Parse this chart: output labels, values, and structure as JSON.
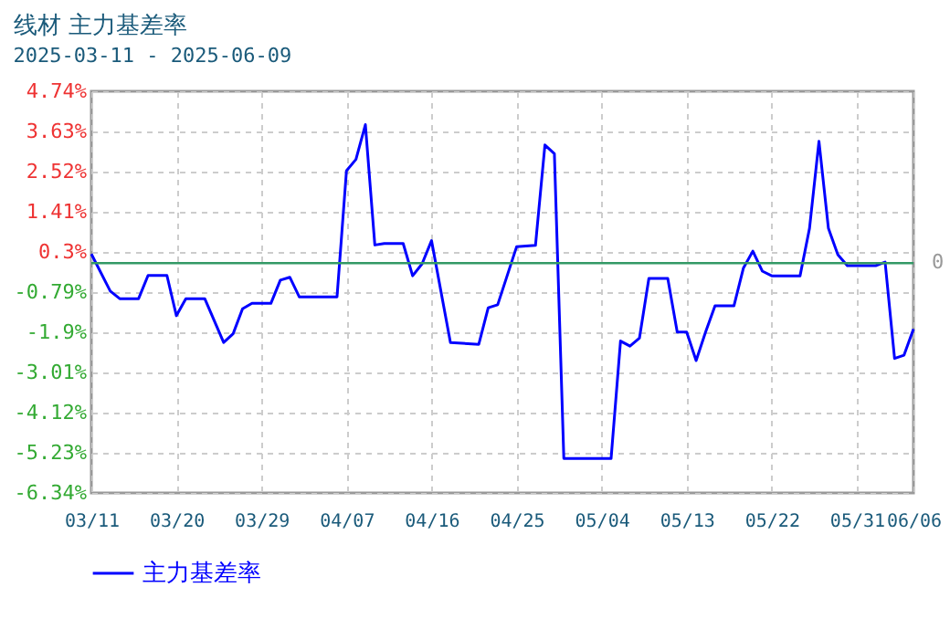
{
  "chart_data": {
    "type": "line",
    "title": "线材  主力基差率",
    "subtitle": "2025-03-11 - 2025-06-09",
    "x": [
      "2025-03-11",
      "2025-03-13",
      "2025-03-14",
      "2025-03-16",
      "2025-03-17",
      "2025-03-18",
      "2025-03-19",
      "2025-03-20",
      "2025-03-21",
      "2025-03-23",
      "2025-03-25",
      "2025-03-26",
      "2025-03-27",
      "2025-03-28",
      "2025-03-30",
      "2025-03-31",
      "2025-04-01",
      "2025-04-02",
      "2025-04-06",
      "2025-04-07",
      "2025-04-08",
      "2025-04-09",
      "2025-04-10",
      "2025-04-11",
      "2025-04-13",
      "2025-04-14",
      "2025-04-15",
      "2025-04-16",
      "2025-04-18",
      "2025-04-21",
      "2025-04-22",
      "2025-04-23",
      "2025-04-25",
      "2025-04-27",
      "2025-04-28",
      "2025-04-29",
      "2025-04-30",
      "2025-05-05",
      "2025-05-06",
      "2025-05-07",
      "2025-05-08",
      "2025-05-09",
      "2025-05-11",
      "2025-05-12",
      "2025-05-13",
      "2025-05-14",
      "2025-05-15",
      "2025-05-16",
      "2025-05-18",
      "2025-05-19",
      "2025-05-20",
      "2025-05-21",
      "2025-05-22",
      "2025-05-25",
      "2025-05-26",
      "2025-05-27",
      "2025-05-28",
      "2025-05-29",
      "2025-05-30",
      "2025-06-02",
      "2025-06-03",
      "2025-06-04",
      "2025-06-05",
      "2025-06-06"
    ],
    "series": [
      {
        "name": "主力基差率",
        "color": "#0000ff",
        "values": [
          0.25,
          -0.77,
          -0.98,
          -0.98,
          -0.34,
          -0.34,
          -0.34,
          -1.45,
          -0.98,
          -0.98,
          -2.19,
          -1.95,
          -1.26,
          -1.11,
          -1.11,
          -0.47,
          -0.39,
          -0.93,
          -0.93,
          2.55,
          2.86,
          3.82,
          0.5,
          0.54,
          0.54,
          -0.35,
          -0.02,
          0.62,
          -2.19,
          -2.24,
          -1.23,
          -1.15,
          0.45,
          0.49,
          3.26,
          3.02,
          -5.39,
          -5.39,
          -2.15,
          -2.29,
          -2.07,
          -0.42,
          -0.42,
          -1.9,
          -1.9,
          -2.69,
          -1.9,
          -1.18,
          -1.18,
          -0.14,
          0.33,
          -0.22,
          -0.35,
          -0.35,
          0.96,
          3.36,
          0.96,
          0.23,
          -0.07,
          -0.07,
          0.03,
          -2.63,
          -2.54,
          -1.82
        ]
      }
    ],
    "xlim": [
      "2025-03-11",
      "2025-06-06"
    ],
    "xticks": [
      {
        "value": "2025-03-11",
        "label": "03/11"
      },
      {
        "value": "2025-03-20",
        "label": "03/20"
      },
      {
        "value": "2025-03-29",
        "label": "03/29"
      },
      {
        "value": "2025-04-07",
        "label": "04/07"
      },
      {
        "value": "2025-04-16",
        "label": "04/16"
      },
      {
        "value": "2025-04-25",
        "label": "04/25"
      },
      {
        "value": "2025-05-04",
        "label": "05/04"
      },
      {
        "value": "2025-05-13",
        "label": "05/13"
      },
      {
        "value": "2025-05-22",
        "label": "05/22"
      },
      {
        "value": "2025-05-31",
        "label": "05/31"
      },
      {
        "value": "2025-06-06",
        "label": "06/06"
      }
    ],
    "ylim": [
      -6.34,
      4.74
    ],
    "yticks": [
      {
        "value": 4.74,
        "label": "4.74%"
      },
      {
        "value": 3.63,
        "label": "3.63%"
      },
      {
        "value": 2.52,
        "label": "2.52%"
      },
      {
        "value": 1.41,
        "label": "1.41%"
      },
      {
        "value": 0.3,
        "label": "0.3%"
      },
      {
        "value": -0.79,
        "label": "-0.79%"
      },
      {
        "value": -1.9,
        "label": "-1.9%"
      },
      {
        "value": -3.01,
        "label": "-3.01%"
      },
      {
        "value": -4.12,
        "label": "-4.12%"
      },
      {
        "value": -5.23,
        "label": "-5.23%"
      },
      {
        "value": -6.34,
        "label": "-6.34%"
      }
    ],
    "ref_lines": [
      {
        "axis": "y",
        "value": 0,
        "label": "0",
        "color": "#339966"
      }
    ],
    "grid": true,
    "legend": "bottom",
    "marker": "none",
    "line_style": "solid"
  }
}
